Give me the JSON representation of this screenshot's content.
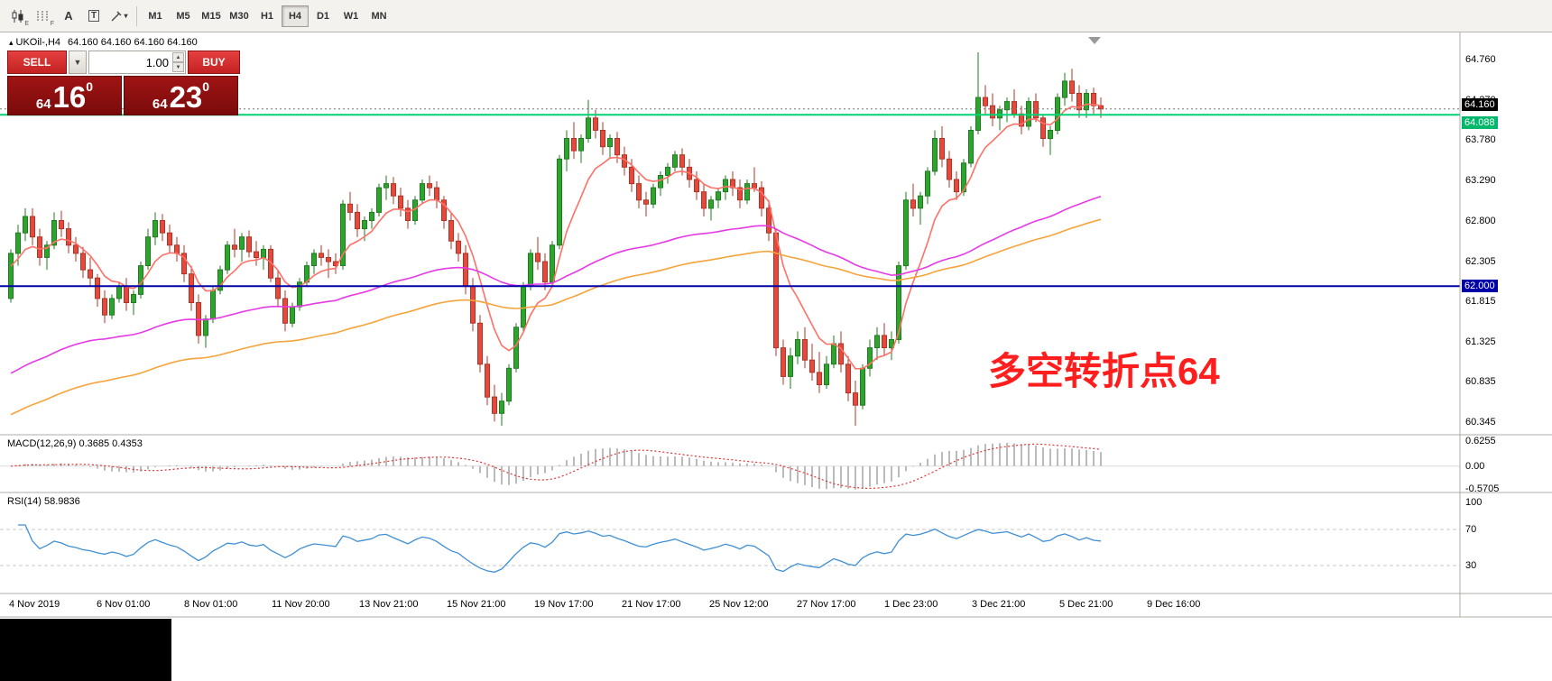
{
  "toolbar": {
    "style_icon_sub": "E",
    "grid_icon_sub": "F",
    "cursor_tool": "A",
    "text_tool": "T",
    "timeframes": [
      "M1",
      "M5",
      "M15",
      "M30",
      "H1",
      "H4",
      "D1",
      "W1",
      "MN"
    ],
    "active_timeframe": "H4"
  },
  "chart_header": {
    "symbol": "UKOil-,H4",
    "ohlc": "64.160 64.160 64.160 64.160"
  },
  "trade_panel": {
    "sell_label": "SELL",
    "buy_label": "BUY",
    "volume": "1.00",
    "sell_price": {
      "big": "64",
      "pips": "16",
      "sup": "0"
    },
    "buy_price": {
      "big": "64",
      "pips": "23",
      "sup": "0"
    }
  },
  "annotation": {
    "text": "多空转折点64",
    "color": "#ff1e1e"
  },
  "price_axis": {
    "ticks": [
      "64.760",
      "64.270",
      "63.780",
      "63.290",
      "62.800",
      "62.305",
      "61.815",
      "61.325",
      "60.835",
      "60.345"
    ],
    "badges": [
      {
        "text": "64.160",
        "price": 64.16,
        "bg": "#000000",
        "fg": "#ffffff",
        "dy": -5
      },
      {
        "text": "64.088",
        "price": 64.088,
        "bg": "#00b76b",
        "fg": "#ffffff",
        "dy": 9
      },
      {
        "text": "62.000",
        "price": 62.0,
        "bg": "#0000a8",
        "fg": "#ffffff",
        "dy": 0
      }
    ]
  },
  "macd_panel": {
    "label": "MACD(12,26,9) 0.3685 0.4353",
    "ticks": [
      "0.6255",
      "0.00",
      "-0.5705"
    ]
  },
  "rsi_panel": {
    "label": "RSI(14) 58.9836",
    "ticks": [
      "100",
      "70",
      "30"
    ],
    "levels": [
      70,
      30
    ]
  },
  "chart_data": {
    "type": "candlestick",
    "symbol": "UKOil",
    "timeframe": "H4",
    "ylim": [
      60.19,
      65.07
    ],
    "time_labels": [
      "4 Nov 2019",
      "6 Nov 01:00",
      "8 Nov 01:00",
      "11 Nov 20:00",
      "13 Nov 21:00",
      "15 Nov 21:00",
      "19 Nov 17:00",
      "21 Nov 17:00",
      "25 Nov 12:00",
      "27 Nov 17:00",
      "1 Dec 23:00",
      "3 Dec 21:00",
      "5 Dec 21:00",
      "9 Dec 16:00"
    ],
    "hlines": [
      {
        "price": 64.088,
        "color": "#00d275",
        "width": 2,
        "dash": ""
      },
      {
        "price": 64.16,
        "color": "#777777",
        "width": 1,
        "dash": "2,3"
      },
      {
        "price": 62.0,
        "color": "#0000a8",
        "width": 2,
        "dash": ""
      }
    ],
    "moving_averages": [
      {
        "period": 8,
        "seed": 62.2,
        "color": "#ff7066"
      },
      {
        "period": 75,
        "seed": 60.9,
        "color": "#e53ae5"
      },
      {
        "period": 110,
        "seed": 60.4,
        "color": "#f5a43c"
      }
    ],
    "macd": {
      "fast": 12,
      "slow": 26,
      "signal": 9,
      "ylim": [
        -0.62,
        0.7
      ],
      "hist_color": "#bbbbbb",
      "signal_color": "#e03434"
    },
    "rsi": {
      "period": 14,
      "color": "#3f8fd4",
      "ylim": [
        0,
        105
      ]
    },
    "colors": {
      "up": "#2ca52c",
      "up_border": "#1e7d1e",
      "down": "#e4493c",
      "down_border": "#b93023"
    },
    "candles": [
      [
        61.85,
        62.45,
        61.8,
        62.4
      ],
      [
        62.4,
        62.75,
        62.25,
        62.65
      ],
      [
        62.65,
        62.95,
        62.55,
        62.85
      ],
      [
        62.85,
        62.95,
        62.5,
        62.6
      ],
      [
        62.6,
        62.7,
        62.25,
        62.35
      ],
      [
        62.35,
        62.55,
        62.2,
        62.5
      ],
      [
        62.5,
        62.9,
        62.45,
        62.8
      ],
      [
        62.8,
        62.92,
        62.6,
        62.7
      ],
      [
        62.7,
        62.78,
        62.4,
        62.5
      ],
      [
        62.5,
        62.6,
        62.3,
        62.4
      ],
      [
        62.4,
        62.48,
        62.1,
        62.2
      ],
      [
        62.2,
        62.35,
        62.0,
        62.1
      ],
      [
        62.1,
        62.15,
        61.75,
        61.85
      ],
      [
        61.85,
        61.95,
        61.55,
        61.65
      ],
      [
        61.65,
        61.9,
        61.6,
        61.85
      ],
      [
        61.85,
        62.05,
        61.8,
        62.0
      ],
      [
        62.0,
        62.1,
        61.7,
        61.8
      ],
      [
        61.8,
        61.95,
        61.65,
        61.9
      ],
      [
        61.9,
        62.3,
        61.85,
        62.25
      ],
      [
        62.25,
        62.7,
        62.2,
        62.6
      ],
      [
        62.6,
        62.9,
        62.5,
        62.8
      ],
      [
        62.8,
        62.88,
        62.55,
        62.65
      ],
      [
        62.65,
        62.75,
        62.4,
        62.5
      ],
      [
        62.5,
        62.6,
        62.3,
        62.4
      ],
      [
        62.4,
        62.5,
        62.05,
        62.15
      ],
      [
        62.15,
        62.25,
        61.7,
        61.8
      ],
      [
        61.8,
        61.9,
        61.3,
        61.4
      ],
      [
        61.4,
        61.65,
        61.25,
        61.6
      ],
      [
        61.6,
        62.0,
        61.55,
        61.95
      ],
      [
        61.95,
        62.25,
        61.9,
        62.2
      ],
      [
        62.2,
        62.55,
        62.15,
        62.5
      ],
      [
        62.5,
        62.7,
        62.35,
        62.45
      ],
      [
        62.45,
        62.65,
        62.3,
        62.6
      ],
      [
        62.6,
        62.68,
        62.35,
        62.42
      ],
      [
        62.42,
        62.55,
        62.25,
        62.35
      ],
      [
        62.35,
        62.5,
        62.2,
        62.45
      ],
      [
        62.45,
        62.5,
        62.05,
        62.1
      ],
      [
        62.1,
        62.2,
        61.75,
        61.85
      ],
      [
        61.85,
        61.95,
        61.45,
        61.55
      ],
      [
        61.55,
        61.8,
        61.5,
        61.75
      ],
      [
        61.75,
        62.1,
        61.7,
        62.05
      ],
      [
        62.05,
        62.3,
        62.0,
        62.25
      ],
      [
        62.25,
        62.45,
        62.15,
        62.4
      ],
      [
        62.4,
        62.5,
        62.25,
        62.35
      ],
      [
        62.35,
        62.45,
        62.1,
        62.3
      ],
      [
        62.3,
        62.4,
        62.15,
        62.25
      ],
      [
        62.25,
        63.05,
        62.2,
        63.0
      ],
      [
        63.0,
        63.15,
        62.8,
        62.9
      ],
      [
        62.9,
        63.0,
        62.6,
        62.7
      ],
      [
        62.7,
        62.85,
        62.55,
        62.8
      ],
      [
        62.8,
        62.95,
        62.7,
        62.9
      ],
      [
        62.9,
        63.25,
        62.85,
        63.2
      ],
      [
        63.2,
        63.35,
        63.05,
        63.25
      ],
      [
        63.25,
        63.33,
        63.0,
        63.1
      ],
      [
        63.1,
        63.2,
        62.85,
        62.95
      ],
      [
        62.95,
        63.05,
        62.7,
        62.8
      ],
      [
        62.8,
        63.1,
        62.75,
        63.05
      ],
      [
        63.05,
        63.3,
        63.0,
        63.25
      ],
      [
        63.25,
        63.35,
        63.1,
        63.2
      ],
      [
        63.2,
        63.28,
        62.95,
        63.05
      ],
      [
        63.05,
        63.1,
        62.7,
        62.8
      ],
      [
        62.8,
        62.9,
        62.45,
        62.55
      ],
      [
        62.55,
        62.65,
        62.3,
        62.4
      ],
      [
        62.4,
        62.5,
        61.9,
        62.0
      ],
      [
        62.0,
        62.1,
        61.45,
        61.55
      ],
      [
        61.55,
        61.65,
        60.95,
        61.05
      ],
      [
        61.05,
        61.15,
        60.55,
        60.65
      ],
      [
        60.65,
        60.8,
        60.35,
        60.45
      ],
      [
        60.45,
        60.7,
        60.3,
        60.6
      ],
      [
        60.6,
        61.05,
        60.55,
        61.0
      ],
      [
        61.0,
        61.55,
        60.95,
        61.5
      ],
      [
        61.5,
        62.05,
        61.45,
        62.0
      ],
      [
        62.0,
        62.45,
        61.95,
        62.4
      ],
      [
        62.4,
        62.6,
        62.2,
        62.3
      ],
      [
        62.3,
        62.4,
        61.95,
        62.05
      ],
      [
        62.05,
        62.55,
        62.0,
        62.5
      ],
      [
        62.5,
        63.6,
        62.45,
        63.55
      ],
      [
        63.55,
        63.9,
        63.4,
        63.8
      ],
      [
        63.8,
        64.0,
        63.55,
        63.65
      ],
      [
        63.65,
        63.85,
        63.5,
        63.8
      ],
      [
        63.8,
        64.27,
        63.75,
        64.05
      ],
      [
        64.05,
        64.15,
        63.8,
        63.9
      ],
      [
        63.9,
        64.0,
        63.6,
        63.7
      ],
      [
        63.7,
        63.85,
        63.55,
        63.8
      ],
      [
        63.8,
        63.88,
        63.5,
        63.6
      ],
      [
        63.6,
        63.7,
        63.35,
        63.45
      ],
      [
        63.45,
        63.55,
        63.15,
        63.25
      ],
      [
        63.25,
        63.35,
        62.95,
        63.05
      ],
      [
        63.05,
        63.15,
        62.85,
        63.0
      ],
      [
        63.0,
        63.25,
        62.95,
        63.2
      ],
      [
        63.2,
        63.4,
        63.1,
        63.35
      ],
      [
        63.35,
        63.5,
        63.25,
        63.45
      ],
      [
        63.45,
        63.65,
        63.4,
        63.6
      ],
      [
        63.6,
        63.68,
        63.35,
        63.45
      ],
      [
        63.45,
        63.55,
        63.2,
        63.3
      ],
      [
        63.3,
        63.4,
        63.05,
        63.15
      ],
      [
        63.15,
        63.25,
        62.85,
        62.95
      ],
      [
        62.95,
        63.1,
        62.8,
        63.05
      ],
      [
        63.05,
        63.2,
        62.95,
        63.15
      ],
      [
        63.15,
        63.35,
        63.05,
        63.3
      ],
      [
        63.3,
        63.4,
        63.1,
        63.2
      ],
      [
        63.2,
        63.3,
        62.95,
        63.05
      ],
      [
        63.05,
        63.3,
        63.0,
        63.25
      ],
      [
        63.25,
        63.45,
        63.15,
        63.2
      ],
      [
        63.2,
        63.28,
        62.85,
        62.95
      ],
      [
        62.95,
        63.05,
        62.55,
        62.65
      ],
      [
        62.65,
        62.7,
        61.15,
        61.25
      ],
      [
        61.25,
        61.35,
        60.8,
        60.9
      ],
      [
        60.9,
        61.25,
        60.75,
        61.15
      ],
      [
        61.15,
        61.45,
        61.05,
        61.35
      ],
      [
        61.35,
        61.5,
        61.0,
        61.1
      ],
      [
        61.1,
        61.3,
        60.85,
        60.95
      ],
      [
        60.95,
        61.2,
        60.7,
        60.8
      ],
      [
        60.8,
        61.15,
        60.75,
        61.05
      ],
      [
        61.05,
        61.4,
        61.0,
        61.3
      ],
      [
        61.3,
        61.45,
        60.95,
        61.05
      ],
      [
        61.05,
        61.15,
        60.6,
        60.7
      ],
      [
        60.7,
        60.85,
        60.3,
        60.55
      ],
      [
        60.55,
        61.05,
        60.5,
        61.0
      ],
      [
        61.0,
        61.35,
        60.9,
        61.25
      ],
      [
        61.25,
        61.5,
        61.1,
        61.4
      ],
      [
        61.4,
        61.55,
        61.15,
        61.25
      ],
      [
        61.25,
        61.45,
        61.1,
        61.35
      ],
      [
        61.35,
        62.3,
        61.3,
        62.25
      ],
      [
        62.25,
        63.15,
        62.2,
        63.05
      ],
      [
        63.05,
        63.25,
        62.85,
        62.95
      ],
      [
        62.95,
        63.15,
        62.75,
        63.1
      ],
      [
        63.1,
        63.45,
        63.0,
        63.4
      ],
      [
        63.4,
        63.9,
        63.35,
        63.8
      ],
      [
        63.8,
        63.95,
        63.45,
        63.55
      ],
      [
        63.55,
        63.65,
        63.2,
        63.3
      ],
      [
        63.3,
        63.4,
        63.05,
        63.15
      ],
      [
        63.15,
        63.55,
        63.1,
        63.5
      ],
      [
        63.5,
        63.95,
        63.45,
        63.9
      ],
      [
        63.9,
        64.85,
        63.85,
        64.3
      ],
      [
        64.3,
        64.45,
        64.1,
        64.2
      ],
      [
        64.2,
        64.35,
        63.95,
        64.05
      ],
      [
        64.05,
        64.2,
        63.9,
        64.15
      ],
      [
        64.15,
        64.3,
        64.0,
        64.25
      ],
      [
        64.25,
        64.4,
        64.05,
        64.1
      ],
      [
        64.1,
        64.2,
        63.85,
        63.95
      ],
      [
        63.95,
        64.3,
        63.9,
        64.25
      ],
      [
        64.25,
        64.35,
        64.0,
        64.05
      ],
      [
        64.05,
        64.1,
        63.7,
        63.8
      ],
      [
        63.8,
        63.95,
        63.6,
        63.9
      ],
      [
        63.9,
        64.35,
        63.85,
        64.3
      ],
      [
        64.3,
        64.6,
        64.2,
        64.5
      ],
      [
        64.5,
        64.65,
        64.25,
        64.35
      ],
      [
        64.35,
        64.45,
        64.05,
        64.15
      ],
      [
        64.15,
        64.4,
        64.05,
        64.35
      ],
      [
        64.35,
        64.42,
        64.1,
        64.2
      ],
      [
        64.2,
        64.3,
        64.05,
        64.16
      ]
    ]
  }
}
